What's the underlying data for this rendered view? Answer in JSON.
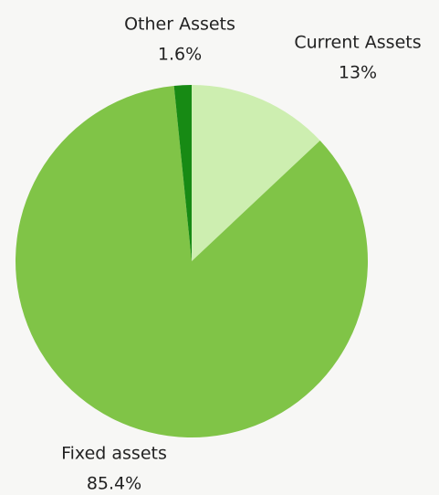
{
  "chart_data": {
    "type": "pie",
    "categories": [
      "Current Assets",
      "Fixed assets",
      "Other Assets"
    ],
    "values": [
      13,
      85.4,
      1.6
    ],
    "value_labels": [
      "13%",
      "85.4%",
      "1.6%"
    ],
    "colors": [
      "#cdeeb0",
      "#80c447",
      "#178a14"
    ]
  }
}
